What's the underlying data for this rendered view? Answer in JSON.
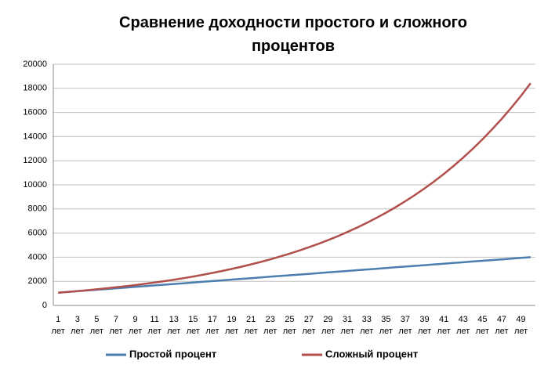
{
  "chart_data": {
    "type": "line",
    "title": "Сравнение доходности простого и сложного процентов",
    "categories": [
      "1 лет",
      null,
      "3 лет",
      null,
      "5 лет",
      null,
      "7 лет",
      null,
      "9 лет",
      null,
      "11 лет",
      null,
      "13 лет",
      null,
      "15 лет",
      null,
      "17 лет",
      null,
      "19 лет",
      null,
      "21 лет",
      null,
      "23 лет",
      null,
      "25 лет",
      null,
      "27 лет",
      null,
      "29 лет",
      null,
      "31 лет",
      null,
      "33 лет",
      null,
      "35 лет",
      null,
      "37 лет",
      null,
      "39 лет",
      null,
      "41 лет",
      null,
      "43 лет",
      null,
      "45 лет",
      null,
      "47 лет",
      null,
      "49 лет",
      null
    ],
    "series": [
      {
        "name": "Простой процент",
        "color": "#4a7eb0",
        "values": [
          1060,
          1120,
          1180,
          1240,
          1300,
          1360,
          1420,
          1480,
          1540,
          1600,
          1660,
          1720,
          1780,
          1840,
          1900,
          1960,
          2020,
          2080,
          2140,
          2200,
          2260,
          2320,
          2380,
          2440,
          2500,
          2560,
          2620,
          2680,
          2740,
          2800,
          2860,
          2920,
          2980,
          3040,
          3100,
          3160,
          3220,
          3280,
          3340,
          3400,
          3460,
          3520,
          3580,
          3640,
          3700,
          3760,
          3820,
          3880,
          3940,
          4000
        ]
      },
      {
        "name": "Сложный процент",
        "color": "#b04f4c",
        "values": [
          1060,
          1124,
          1191,
          1262,
          1338,
          1419,
          1504,
          1594,
          1689,
          1791,
          1898,
          2012,
          2133,
          2261,
          2397,
          2540,
          2693,
          2854,
          3026,
          3207,
          3400,
          3604,
          3820,
          4049,
          4292,
          4549,
          4822,
          5112,
          5418,
          5743,
          6088,
          6453,
          6841,
          7251,
          7686,
          8147,
          8636,
          9154,
          9704,
          10286,
          10903,
          11557,
          12250,
          12985,
          13765,
          14590,
          15466,
          16394,
          17378,
          18420
        ]
      }
    ],
    "ylim": [
      0,
      20000
    ],
    "yticks": [
      0,
      2000,
      4000,
      6000,
      8000,
      10000,
      12000,
      14000,
      16000,
      18000,
      20000
    ],
    "grid": true,
    "legend": "bottom"
  }
}
